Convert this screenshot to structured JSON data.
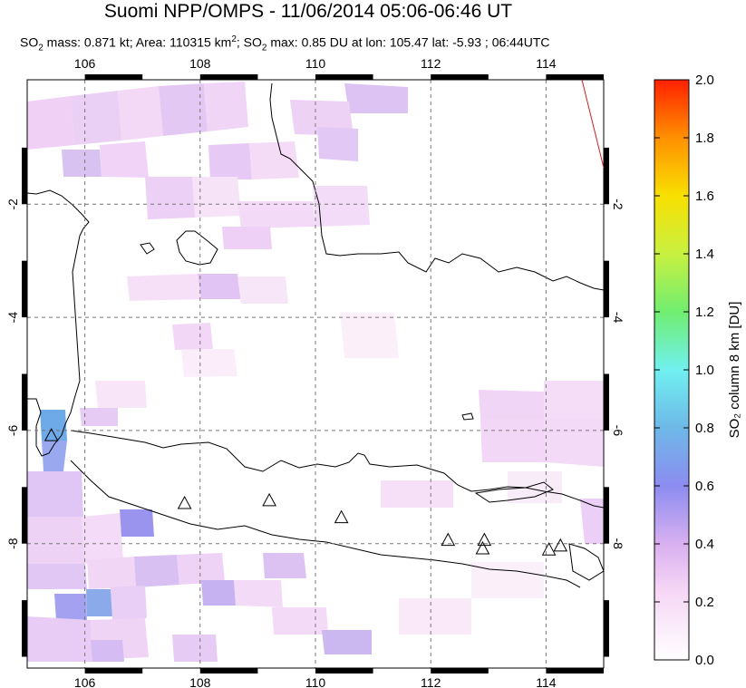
{
  "header": {
    "title": "Suomi NPP/OMPS - 11/06/2014 05:06-06:46 UT",
    "subtitle_parts": {
      "p1": "SO",
      "p1_sub": "2",
      "p2": " mass: 0.871 kt; Area: 110315 km",
      "p2_sup": "2",
      "p3": "; SO",
      "p3_sub": "2",
      "p4": " max: 0.85 DU at lon: 105.47 lat: -5.93 ; 06:44UTC"
    }
  },
  "map": {
    "lon_range": [
      105,
      115
    ],
    "lat_range": [
      -10.2,
      0.2
    ],
    "lon_ticks": [
      "106",
      "108",
      "110",
      "112",
      "114"
    ],
    "lat_ticks": [
      "-2",
      "-4",
      "-6",
      "-8"
    ],
    "grid": true,
    "volcano_markers": [
      {
        "lon": 105.42,
        "lat": -6.1
      },
      {
        "lon": 107.73,
        "lat": -7.3
      },
      {
        "lon": 109.2,
        "lat": -7.25
      },
      {
        "lon": 110.45,
        "lat": -7.55
      },
      {
        "lon": 112.3,
        "lat": -7.95
      },
      {
        "lon": 112.93,
        "lat": -7.95
      },
      {
        "lon": 112.9,
        "lat": -8.1
      },
      {
        "lon": 114.05,
        "lat": -8.12
      },
      {
        "lon": 114.25,
        "lat": -8.05
      }
    ]
  },
  "colorbar": {
    "label": "SO₂ column 8 km [DU]",
    "min": 0.0,
    "max": 2.0,
    "tick_labels": [
      "0.0",
      "0.2",
      "0.4",
      "0.6",
      "0.8",
      "1.0",
      "1.2",
      "1.4",
      "1.6",
      "1.8",
      "2.0"
    ],
    "colors": [
      "#ffffff",
      "#f5d3f5",
      "#a090f0",
      "#6eb3e8",
      "#70f0f0",
      "#70ee70",
      "#c8f040",
      "#f8e000",
      "#ff9000",
      "#ff2000"
    ]
  }
}
